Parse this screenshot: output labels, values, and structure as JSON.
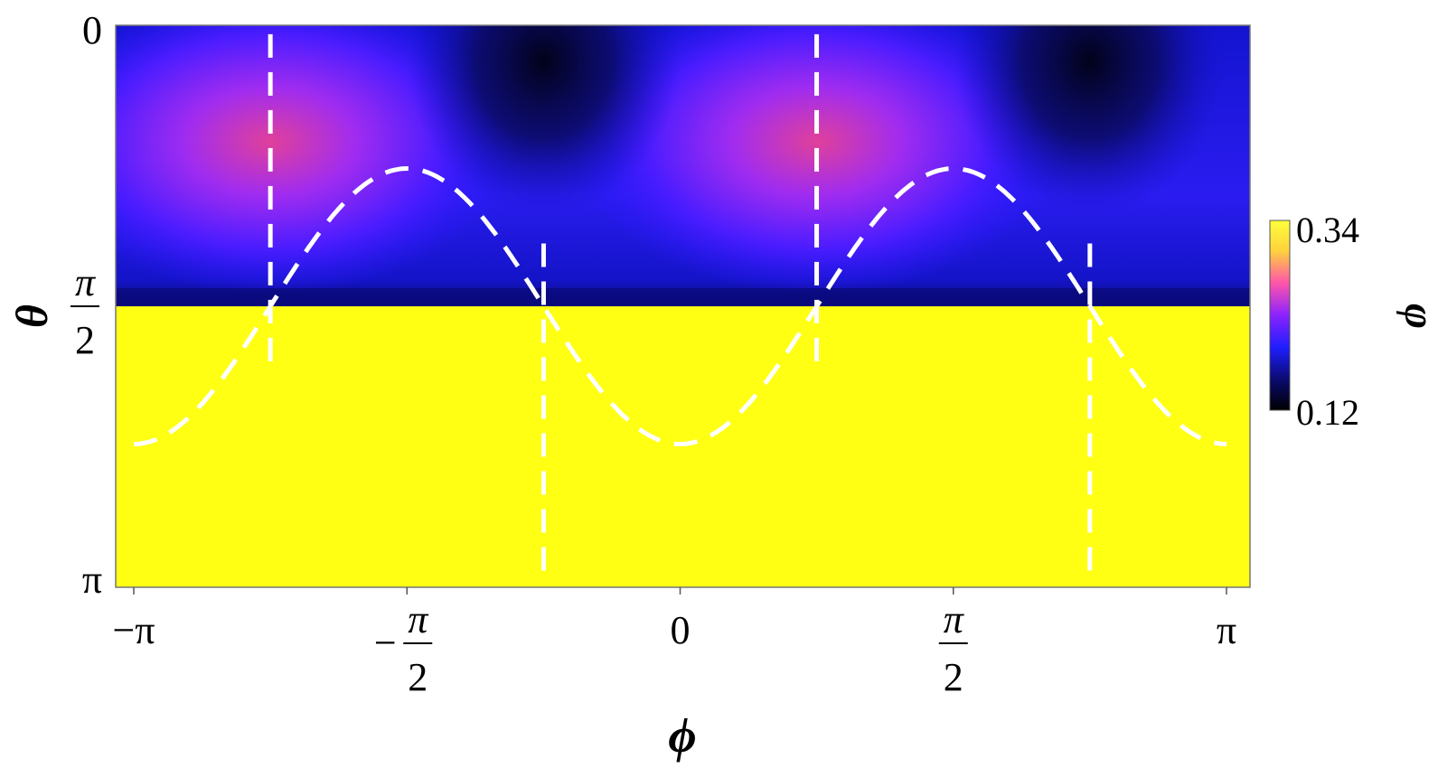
{
  "chart_data": {
    "type": "heatmap",
    "title": "",
    "xlabel": "ϕ",
    "ylabel": "θ",
    "xlim": [
      -3.14159,
      3.14159
    ],
    "ylim": [
      0,
      3.14159
    ],
    "y_axis_inverted": true,
    "x_ticks": [
      {
        "value": -3.14159,
        "num": "−π",
        "den": ""
      },
      {
        "value": -1.5708,
        "num": "−",
        "frac_num": "π",
        "den": "2"
      },
      {
        "value": 0,
        "num": "0",
        "den": ""
      },
      {
        "value": 1.5708,
        "num": "",
        "frac_num": "π",
        "den": "2"
      },
      {
        "value": 3.14159,
        "num": "π",
        "den": ""
      }
    ],
    "y_ticks": [
      {
        "value": 0,
        "label": "0"
      },
      {
        "value": 1.5708,
        "frac_num": "π",
        "den": "2"
      },
      {
        "value": 3.14159,
        "label": "π"
      }
    ],
    "colorbar": {
      "label": "φ",
      "min": 0.12,
      "max": 0.34,
      "min_label": "0.12",
      "max_label": "0.34",
      "colors": [
        "#000000",
        "#0a0a6e",
        "#1e1eff",
        "#8a22ff",
        "#ff55aa",
        "#ffd23c",
        "#ffff3c"
      ]
    },
    "field_description_values": {
      "lower_half_value": 0.34,
      "upper_half_min": 0.12,
      "upper_half_peak": 0.27,
      "peak_phi": [
        -2.356,
        0.785
      ],
      "peak_theta": 0.65,
      "trough_phi": [
        -0.785,
        2.356
      ],
      "boundary_theta": 1.5708
    },
    "overlay_lines": {
      "style": "white dashed",
      "color": "#ffffff",
      "curve": {
        "description": "theta = pi/2 - A*sin(2*phi + 3*pi/2)",
        "amplitude": 0.77,
        "x_from": -3.14159,
        "x_to": 3.14159
      },
      "vertical_segments": [
        {
          "phi": -2.356,
          "theta_from": 0.05,
          "theta_to": 1.95
        },
        {
          "phi": -0.785,
          "theta_from": 1.22,
          "theta_to": 3.1
        },
        {
          "phi": 0.785,
          "theta_from": 0.05,
          "theta_to": 1.95
        },
        {
          "phi": 2.356,
          "theta_from": 1.22,
          "theta_to": 3.1
        }
      ]
    }
  }
}
